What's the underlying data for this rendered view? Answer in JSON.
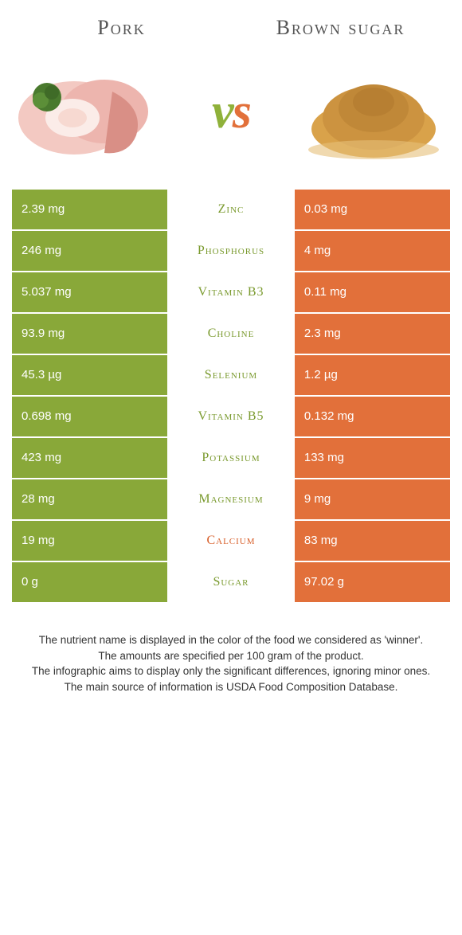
{
  "header": {
    "left_title": "Pork",
    "right_title": "Brown sugar",
    "vs_left_char": "v",
    "vs_right_char": "s"
  },
  "styling": {
    "left_color": "#89a839",
    "right_color": "#e2703a",
    "left_text_color": "#7a9a2e",
    "right_text_color": "#d85f2a",
    "background": "#ffffff",
    "title_fontsize_pt": 20,
    "vs_fontsize_pt": 46,
    "cell_fontsize_pt": 11,
    "nutrient_fontsize_pt": 12,
    "footnote_fontsize_pt": 10
  },
  "rows": [
    {
      "nutrient": "Zinc",
      "left": "2.39 mg",
      "right": "0.03 mg",
      "winner": "left"
    },
    {
      "nutrient": "Phosphorus",
      "left": "246 mg",
      "right": "4 mg",
      "winner": "left"
    },
    {
      "nutrient": "Vitamin B3",
      "left": "5.037 mg",
      "right": "0.11 mg",
      "winner": "left"
    },
    {
      "nutrient": "Choline",
      "left": "93.9 mg",
      "right": "2.3 mg",
      "winner": "left"
    },
    {
      "nutrient": "Selenium",
      "left": "45.3 µg",
      "right": "1.2 µg",
      "winner": "left"
    },
    {
      "nutrient": "Vitamin B5",
      "left": "0.698 mg",
      "right": "0.132 mg",
      "winner": "left"
    },
    {
      "nutrient": "Potassium",
      "left": "423 mg",
      "right": "133 mg",
      "winner": "left"
    },
    {
      "nutrient": "Magnesium",
      "left": "28 mg",
      "right": "9 mg",
      "winner": "left"
    },
    {
      "nutrient": "Calcium",
      "left": "19 mg",
      "right": "83 mg",
      "winner": "right"
    },
    {
      "nutrient": "Sugar",
      "left": "0 g",
      "right": "97.02 g",
      "winner": "left"
    }
  ],
  "footnotes": {
    "line1": "The nutrient name is displayed in the color of the food we considered as 'winner'.",
    "line2": "The amounts are specified per 100 gram of the product.",
    "line3": "The infographic aims to display only the significant differences, ignoring minor ones.",
    "line4": "The main source of information is USDA Food Composition Database."
  }
}
